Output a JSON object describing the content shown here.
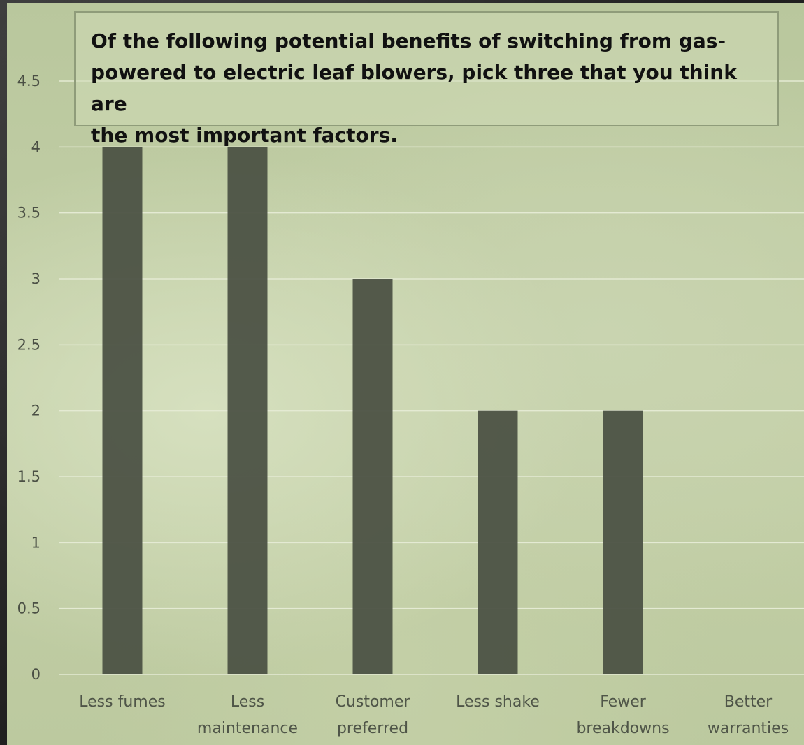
{
  "chart_data": {
    "type": "bar",
    "title": "Of the following potential benefits of switching from gas-powered to electric leaf blowers, pick three that you think are the most important factors.",
    "title_lines": [
      "Of the following potential benefits of switching from gas-",
      "powered to electric leaf blowers, pick three that you think are",
      "the most important factors."
    ],
    "categories": [
      [
        "Less fumes"
      ],
      [
        "Less",
        "maintenance"
      ],
      [
        "Customer",
        "preferred"
      ],
      [
        "Less shake"
      ],
      [
        "Fewer",
        "breakdowns"
      ],
      [
        "Better",
        "warranties"
      ]
    ],
    "values": [
      4,
      4,
      3,
      2,
      2,
      0
    ],
    "ylim": [
      0,
      4.5
    ],
    "yticks": [
      "0",
      "0.5",
      "1",
      "1.5",
      "2",
      "2.5",
      "3",
      "3.5",
      "4",
      "4.5"
    ],
    "grid": true,
    "xlabel": "",
    "ylabel": "",
    "bar_color": "#4c5245",
    "grid_color": "#e4ead3"
  }
}
